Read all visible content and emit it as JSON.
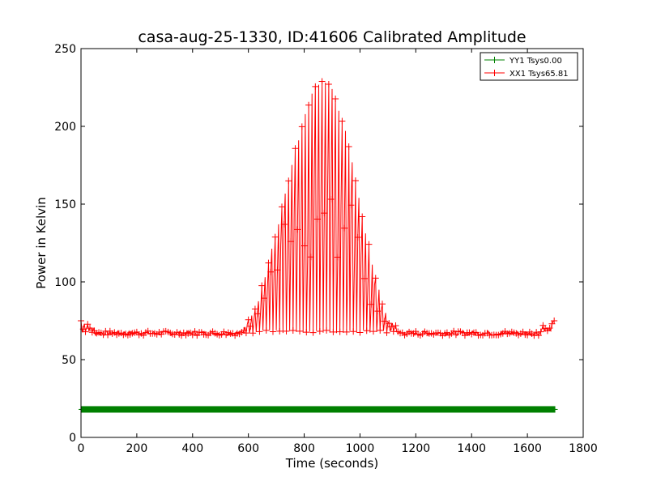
{
  "chart_data": {
    "type": "line",
    "title": "casa-aug-25-1330, ID:41606 Calibrated Amplitude",
    "xlabel": "Time (seconds)",
    "ylabel": "Power in Kelvin",
    "xlim": [
      0,
      1800
    ],
    "ylim": [
      0,
      250
    ],
    "xticks": [
      "0",
      "200",
      "400",
      "600",
      "800",
      "1000",
      "1200",
      "1400",
      "1600",
      "1800"
    ],
    "yticks": [
      "0",
      "50",
      "100",
      "150",
      "200",
      "250"
    ],
    "legend_position": "top-right",
    "grid": false,
    "series": [
      {
        "name": "YY1 Tsys0.00",
        "color": "#008000",
        "marker": "+",
        "x_range": [
          0,
          1700
        ],
        "baseline": 18,
        "values_note_free": true
      },
      {
        "name": "XX1 Tsys65.81",
        "color": "#ff0000",
        "marker": "+",
        "x_range": [
          0,
          1700
        ],
        "baseline": 67,
        "peak": 233,
        "peak_x": 860,
        "points": [
          [
            0,
            75
          ],
          [
            100,
            67
          ],
          [
            200,
            67
          ],
          [
            300,
            68
          ],
          [
            400,
            69
          ],
          [
            500,
            69
          ],
          [
            580,
            70
          ],
          [
            620,
            82
          ],
          [
            660,
            105
          ],
          [
            700,
            135
          ],
          [
            740,
            165
          ],
          [
            780,
            195
          ],
          [
            820,
            220
          ],
          [
            860,
            233
          ],
          [
            900,
            225
          ],
          [
            940,
            205
          ],
          [
            980,
            170
          ],
          [
            1020,
            135
          ],
          [
            1060,
            100
          ],
          [
            1100,
            78
          ],
          [
            1140,
            70
          ],
          [
            1200,
            68
          ],
          [
            1300,
            68
          ],
          [
            1400,
            67
          ],
          [
            1500,
            67
          ],
          [
            1600,
            67
          ],
          [
            1700,
            76
          ]
        ]
      }
    ]
  }
}
